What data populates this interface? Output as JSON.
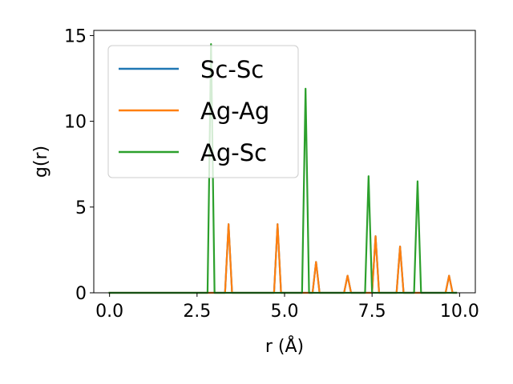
{
  "chart_data": {
    "type": "line",
    "xlabel": "r (Å)",
    "ylabel": "g(r)",
    "xlim": [
      -0.45,
      10.45
    ],
    "ylim": [
      0,
      15.3
    ],
    "xticks": [
      0.0,
      2.5,
      5.0,
      7.5,
      10.0
    ],
    "xtick_labels": [
      "0.0",
      "2.5",
      "5.0",
      "7.5",
      "10.0"
    ],
    "yticks": [
      0,
      5,
      10,
      15
    ],
    "ytick_labels": [
      "0",
      "5",
      "10",
      "15"
    ],
    "grid": false,
    "legend_position": "upper-left",
    "series": [
      {
        "name": "Sc-Sc",
        "color": "#1f77b4",
        "x": [
          0.0,
          3.3,
          3.4,
          3.5,
          4.7,
          4.8,
          4.9,
          5.8,
          5.9,
          6.0,
          6.7,
          6.8,
          6.9,
          7.5,
          7.6,
          7.7,
          8.2,
          8.3,
          8.4,
          9.6,
          9.7,
          9.8,
          9.9
        ],
        "y": [
          0,
          0,
          4.0,
          0,
          0,
          4.0,
          0,
          0,
          1.8,
          0,
          0,
          1.0,
          0,
          0,
          3.3,
          0,
          0,
          2.7,
          0,
          0,
          1.0,
          0,
          0
        ]
      },
      {
        "name": "Ag-Ag",
        "color": "#ff7f0e",
        "x": [
          0.0,
          3.3,
          3.4,
          3.5,
          4.7,
          4.8,
          4.9,
          5.8,
          5.9,
          6.0,
          6.7,
          6.8,
          6.9,
          7.5,
          7.6,
          7.7,
          8.2,
          8.3,
          8.4,
          9.6,
          9.7,
          9.8,
          9.9
        ],
        "y": [
          0,
          0,
          4.0,
          0,
          0,
          4.0,
          0,
          0,
          1.8,
          0,
          0,
          1.0,
          0,
          0,
          3.3,
          0,
          0,
          2.7,
          0,
          0,
          1.0,
          0,
          0
        ]
      },
      {
        "name": "Ag-Sc",
        "color": "#2ca02c",
        "x": [
          0.0,
          2.8,
          2.9,
          3.0,
          5.5,
          5.6,
          5.7,
          7.3,
          7.4,
          7.5,
          8.7,
          8.8,
          8.9,
          9.9
        ],
        "y": [
          0,
          0,
          14.5,
          0,
          0,
          11.9,
          0,
          0,
          6.8,
          0,
          0,
          6.5,
          0,
          0
        ]
      }
    ]
  }
}
